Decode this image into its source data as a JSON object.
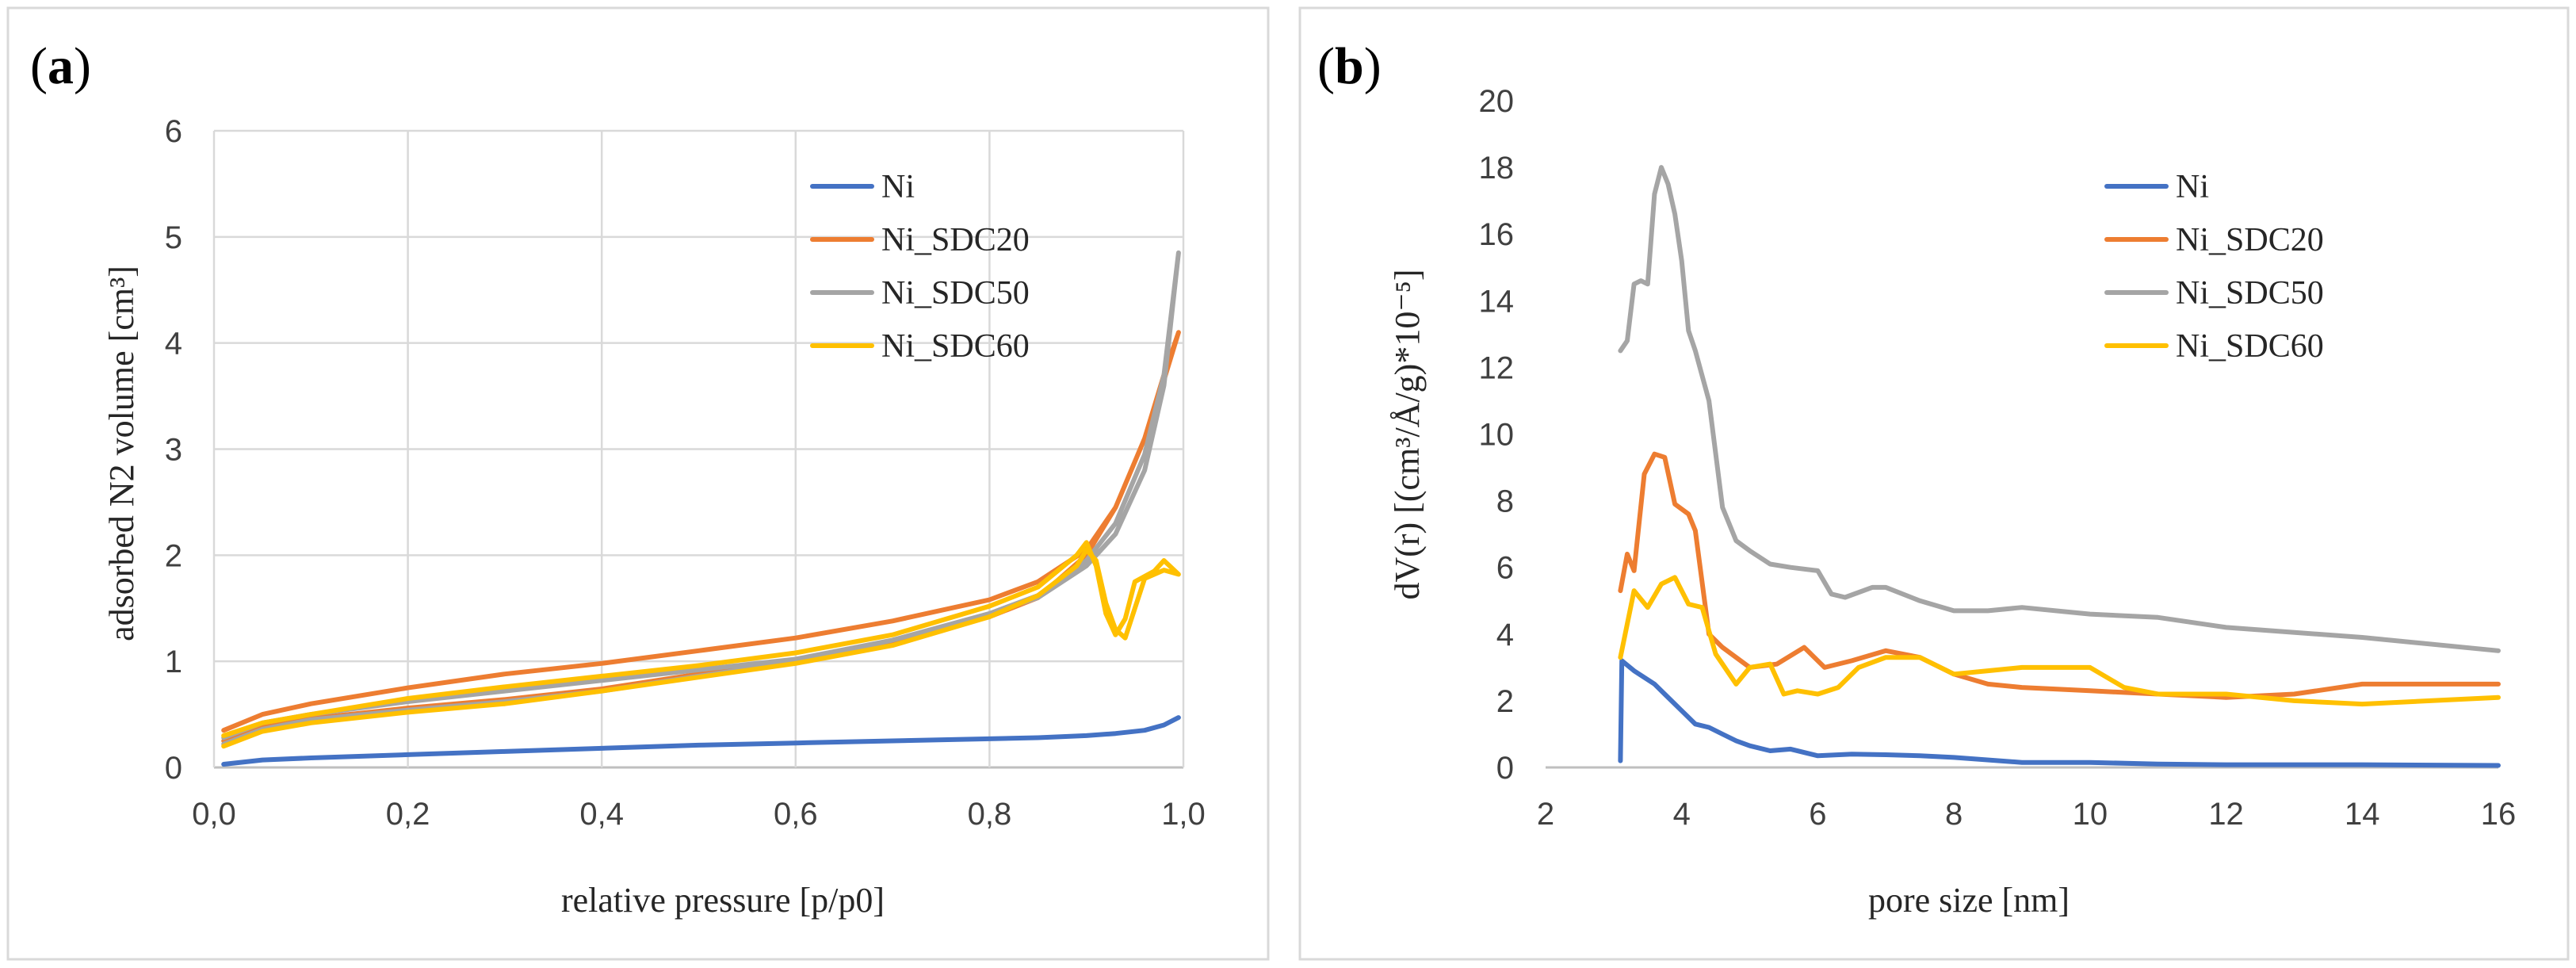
{
  "chart_data": [
    {
      "type": "line",
      "panel_label": "a",
      "title": "",
      "xlabel": "relative pressure [p/p0]",
      "ylabel": "adsorbed N2 volume [cm³]",
      "xlim": [
        0,
        1
      ],
      "ylim": [
        0,
        6
      ],
      "xticks": [
        0,
        0.2,
        0.4,
        0.6,
        0.8,
        1.0
      ],
      "xtick_labels": [
        "0,0",
        "0,2",
        "0,4",
        "0,6",
        "0,8",
        "1,0"
      ],
      "yticks": [
        0,
        1,
        2,
        3,
        4,
        5,
        6
      ],
      "ytick_labels": [
        "0",
        "1",
        "2",
        "3",
        "4",
        "5",
        "6"
      ],
      "grid": true,
      "legend_position": "top-right",
      "series": [
        {
          "name": "Ni",
          "color": "#4472C4",
          "x": [
            0.01,
            0.05,
            0.1,
            0.2,
            0.3,
            0.4,
            0.5,
            0.6,
            0.7,
            0.8,
            0.85,
            0.9,
            0.93,
            0.96,
            0.98,
            0.995
          ],
          "y": [
            0.03,
            0.07,
            0.09,
            0.12,
            0.15,
            0.18,
            0.21,
            0.23,
            0.25,
            0.27,
            0.28,
            0.3,
            0.32,
            0.35,
            0.4,
            0.47
          ]
        },
        {
          "name": "Ni_SDC20",
          "color": "#ED7D31",
          "x": [
            0.01,
            0.05,
            0.1,
            0.2,
            0.3,
            0.4,
            0.5,
            0.6,
            0.7,
            0.8,
            0.85,
            0.9,
            0.93,
            0.96,
            0.98,
            0.995,
            0.98,
            0.96,
            0.93,
            0.9,
            0.85,
            0.8,
            0.7,
            0.6,
            0.5,
            0.4,
            0.3,
            0.2,
            0.1,
            0.05,
            0.01
          ],
          "y": [
            0.35,
            0.5,
            0.6,
            0.75,
            0.88,
            0.98,
            1.1,
            1.22,
            1.38,
            1.58,
            1.75,
            2.05,
            2.45,
            3.1,
            3.65,
            4.1,
            3.7,
            3.1,
            2.45,
            2.0,
            1.6,
            1.42,
            1.18,
            1.0,
            0.88,
            0.74,
            0.64,
            0.56,
            0.46,
            0.38,
            0.25
          ]
        },
        {
          "name": "Ni_SDC50",
          "color": "#A5A5A5",
          "x": [
            0.01,
            0.05,
            0.1,
            0.2,
            0.3,
            0.4,
            0.5,
            0.6,
            0.7,
            0.8,
            0.85,
            0.9,
            0.93,
            0.96,
            0.98,
            0.995,
            0.98,
            0.96,
            0.93,
            0.9,
            0.85,
            0.8,
            0.7,
            0.6,
            0.5,
            0.4,
            0.3,
            0.2,
            0.1,
            0.05,
            0.01
          ],
          "y": [
            0.28,
            0.42,
            0.5,
            0.62,
            0.72,
            0.82,
            0.92,
            1.02,
            1.2,
            1.45,
            1.62,
            1.95,
            2.3,
            2.95,
            3.7,
            4.85,
            3.6,
            2.8,
            2.2,
            1.9,
            1.6,
            1.45,
            1.2,
            1.0,
            0.86,
            0.72,
            0.62,
            0.54,
            0.45,
            0.36,
            0.22
          ]
        },
        {
          "name": "Ni_SDC60",
          "color": "#FFC000",
          "x": [
            0.01,
            0.05,
            0.1,
            0.2,
            0.3,
            0.4,
            0.5,
            0.6,
            0.7,
            0.8,
            0.85,
            0.89,
            0.9,
            0.91,
            0.92,
            0.93,
            0.94,
            0.95,
            0.97,
            0.98,
            0.995,
            0.98,
            0.96,
            0.95,
            0.94,
            0.93,
            0.92,
            0.91,
            0.9,
            0.89,
            0.85,
            0.8,
            0.7,
            0.6,
            0.5,
            0.4,
            0.3,
            0.2,
            0.1,
            0.05,
            0.01
          ],
          "y": [
            0.3,
            0.42,
            0.5,
            0.65,
            0.76,
            0.86,
            0.96,
            1.08,
            1.25,
            1.52,
            1.7,
            2.0,
            2.12,
            1.9,
            1.45,
            1.25,
            1.4,
            1.75,
            1.85,
            1.95,
            1.82,
            1.86,
            1.78,
            1.5,
            1.22,
            1.3,
            1.55,
            1.95,
            2.05,
            1.9,
            1.62,
            1.42,
            1.15,
            0.98,
            0.85,
            0.72,
            0.6,
            0.52,
            0.42,
            0.34,
            0.2
          ]
        }
      ]
    },
    {
      "type": "line",
      "panel_label": "b",
      "title": "",
      "xlabel": "pore size [nm]",
      "ylabel": "dV(r) [(cm³/Å/g)*10⁻⁵]",
      "xlim": [
        2,
        16
      ],
      "ylim": [
        0,
        20
      ],
      "xticks": [
        2,
        4,
        6,
        8,
        10,
        12,
        14,
        16
      ],
      "xtick_labels": [
        "2",
        "4",
        "6",
        "8",
        "10",
        "12",
        "14",
        "16"
      ],
      "yticks": [
        0,
        2,
        4,
        6,
        8,
        10,
        12,
        14,
        16,
        18,
        20
      ],
      "ytick_labels": [
        "0",
        "2",
        "4",
        "6",
        "8",
        "10",
        "12",
        "14",
        "16",
        "18",
        "20"
      ],
      "grid": false,
      "legend_position": "top-right",
      "series": [
        {
          "name": "Ni",
          "color": "#4472C4",
          "x": [
            3.1,
            3.12,
            3.3,
            3.6,
            3.8,
            4.0,
            4.2,
            4.4,
            4.6,
            4.8,
            5.0,
            5.3,
            5.6,
            6.0,
            6.5,
            7.0,
            7.5,
            8.0,
            9.0,
            10.0,
            11.0,
            12.0,
            14.0,
            16.0
          ],
          "y": [
            0.2,
            3.2,
            2.9,
            2.5,
            2.1,
            1.7,
            1.3,
            1.2,
            1.0,
            0.8,
            0.65,
            0.5,
            0.55,
            0.35,
            0.4,
            0.38,
            0.35,
            0.3,
            0.15,
            0.15,
            0.1,
            0.08,
            0.08,
            0.06
          ]
        },
        {
          "name": "Ni_SDC20",
          "color": "#ED7D31",
          "x": [
            3.1,
            3.2,
            3.3,
            3.45,
            3.6,
            3.75,
            3.9,
            4.1,
            4.2,
            4.4,
            4.6,
            5.0,
            5.4,
            5.8,
            6.1,
            6.5,
            7.0,
            7.5,
            8.0,
            8.5,
            9.0,
            10.0,
            11.0,
            12.0,
            13.0,
            14.0,
            15.0,
            16.0
          ],
          "y": [
            5.3,
            6.4,
            5.9,
            8.8,
            9.4,
            9.3,
            7.9,
            7.6,
            7.1,
            4.0,
            3.6,
            3.0,
            3.1,
            3.6,
            3.0,
            3.2,
            3.5,
            3.3,
            2.8,
            2.5,
            2.4,
            2.3,
            2.2,
            2.1,
            2.2,
            2.5,
            2.5,
            2.5
          ]
        },
        {
          "name": "Ni_SDC50",
          "color": "#A5A5A5",
          "x": [
            3.1,
            3.2,
            3.3,
            3.4,
            3.5,
            3.6,
            3.7,
            3.8,
            3.9,
            4.0,
            4.1,
            4.2,
            4.4,
            4.6,
            4.8,
            5.0,
            5.3,
            5.6,
            6.0,
            6.2,
            6.4,
            6.8,
            7.0,
            7.5,
            8.0,
            8.5,
            9.0,
            10.0,
            11.0,
            12.0,
            14.0,
            16.0
          ],
          "y": [
            12.5,
            12.8,
            14.5,
            14.6,
            14.5,
            17.2,
            18.0,
            17.5,
            16.6,
            15.2,
            13.1,
            12.5,
            11.0,
            7.8,
            6.8,
            6.5,
            6.1,
            6.0,
            5.9,
            5.2,
            5.1,
            5.4,
            5.4,
            5.0,
            4.7,
            4.7,
            4.8,
            4.6,
            4.5,
            4.2,
            3.9,
            3.5
          ]
        },
        {
          "name": "Ni_SDC60",
          "color": "#FFC000",
          "x": [
            3.1,
            3.3,
            3.5,
            3.7,
            3.9,
            4.1,
            4.3,
            4.5,
            4.8,
            5.0,
            5.3,
            5.5,
            5.7,
            6.0,
            6.3,
            6.6,
            7.0,
            7.5,
            8.0,
            8.5,
            9.0,
            10.0,
            10.5,
            11.0,
            12.0,
            13.0,
            14.0,
            15.0,
            16.0
          ],
          "y": [
            3.3,
            5.3,
            4.8,
            5.5,
            5.7,
            4.9,
            4.8,
            3.4,
            2.5,
            3.0,
            3.1,
            2.2,
            2.3,
            2.2,
            2.4,
            3.0,
            3.3,
            3.3,
            2.8,
            2.9,
            3.0,
            3.0,
            2.4,
            2.2,
            2.2,
            2.0,
            1.9,
            2.0,
            2.1
          ]
        }
      ]
    }
  ]
}
